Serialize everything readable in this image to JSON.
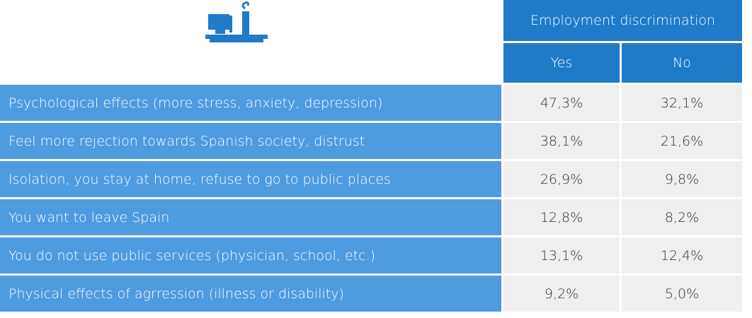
{
  "table": {
    "title": "Employment discrimination",
    "columns": [
      "Yes",
      "No"
    ],
    "rows": [
      {
        "label": "Psychological effects (more stress, anxiety, depression)",
        "values": [
          "47,3%",
          "32,1%"
        ]
      },
      {
        "label": "Feel more rejection towards Spanish society, distrust",
        "values": [
          "38,1%",
          "21,6%"
        ]
      },
      {
        "label": "Isolation, you stay at home, refuse to go to public places",
        "values": [
          "26,9%",
          "9,8%"
        ]
      },
      {
        "label": "You want to leave Spain",
        "values": [
          "12,8%",
          "8,2%"
        ]
      },
      {
        "label": "You do not use public services (physician, school, etc.)",
        "values": [
          "13,1%",
          "12,4%"
        ]
      },
      {
        "label": "Physical effects of agrression (illness or disability)",
        "values": [
          "9,2%",
          "5,0%"
        ]
      }
    ]
  }
}
